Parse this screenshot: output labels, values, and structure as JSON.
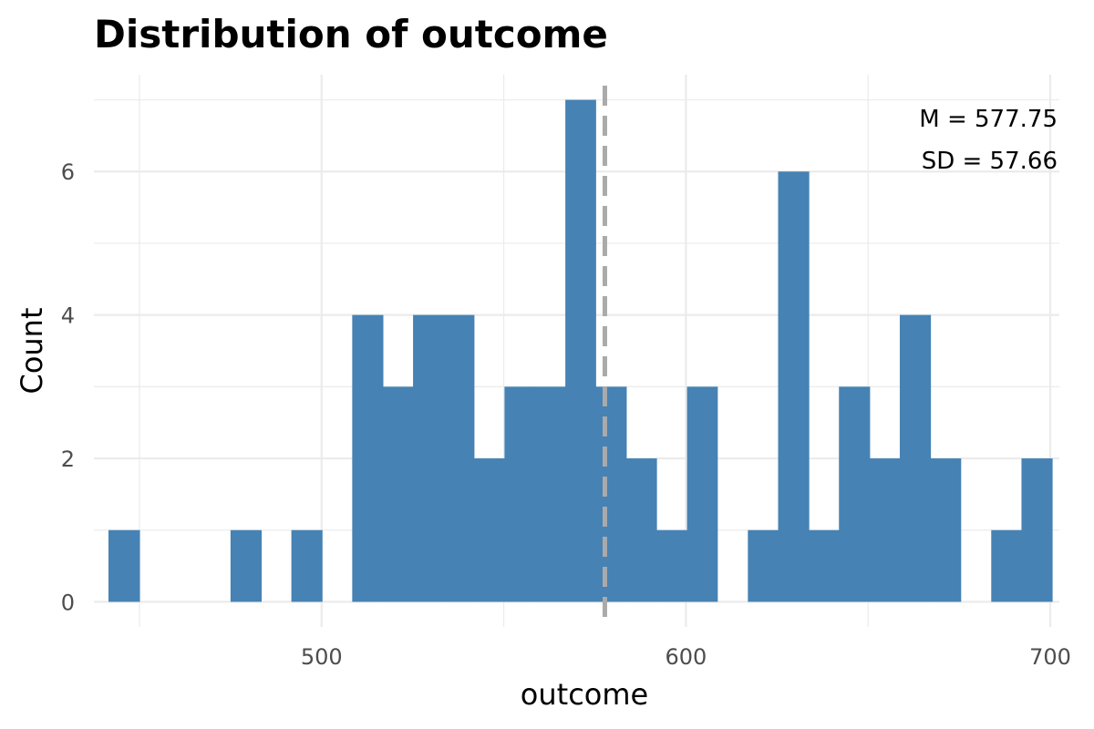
{
  "chart_data": {
    "type": "bar",
    "title": "Distribution of outcome",
    "xlabel": "outcome",
    "ylabel": "Count",
    "xlim": [
      437.5,
      702.5
    ],
    "ylim": [
      -0.35,
      7.35
    ],
    "x_ticks": [
      500,
      600,
      700
    ],
    "x_minor_ticks": [
      450,
      550,
      650
    ],
    "y_ticks": [
      0,
      2,
      4,
      6
    ],
    "y_minor_ticks": [
      1,
      3,
      5,
      7
    ],
    "grid": true,
    "bar_color": "#4682B4",
    "bins": [
      {
        "x0": 441.5,
        "x1": 450.0,
        "count": 1
      },
      {
        "x0": 450.0,
        "x1": 458.3,
        "count": 0
      },
      {
        "x0": 458.3,
        "x1": 466.7,
        "count": 0
      },
      {
        "x0": 466.7,
        "x1": 475.0,
        "count": 0
      },
      {
        "x0": 475.0,
        "x1": 483.4,
        "count": 1
      },
      {
        "x0": 483.4,
        "x1": 491.7,
        "count": 0
      },
      {
        "x0": 491.7,
        "x1": 500.1,
        "count": 1
      },
      {
        "x0": 500.1,
        "x1": 508.4,
        "count": 0
      },
      {
        "x0": 508.4,
        "x1": 516.8,
        "count": 4
      },
      {
        "x0": 516.8,
        "x1": 525.1,
        "count": 3
      },
      {
        "x0": 525.1,
        "x1": 533.5,
        "count": 4
      },
      {
        "x0": 533.5,
        "x1": 541.8,
        "count": 4
      },
      {
        "x0": 541.8,
        "x1": 550.2,
        "count": 2
      },
      {
        "x0": 550.2,
        "x1": 558.5,
        "count": 3
      },
      {
        "x0": 558.5,
        "x1": 566.9,
        "count": 3
      },
      {
        "x0": 566.9,
        "x1": 575.2,
        "count": 7
      },
      {
        "x0": 575.2,
        "x1": 583.6,
        "count": 3
      },
      {
        "x0": 583.6,
        "x1": 591.9,
        "count": 2
      },
      {
        "x0": 591.9,
        "x1": 600.3,
        "count": 1
      },
      {
        "x0": 600.3,
        "x1": 608.6,
        "count": 3
      },
      {
        "x0": 608.6,
        "x1": 617.0,
        "count": 0
      },
      {
        "x0": 617.0,
        "x1": 625.3,
        "count": 1
      },
      {
        "x0": 625.3,
        "x1": 633.7,
        "count": 6
      },
      {
        "x0": 633.7,
        "x1": 642.0,
        "count": 1
      },
      {
        "x0": 642.0,
        "x1": 650.4,
        "count": 3
      },
      {
        "x0": 650.4,
        "x1": 658.7,
        "count": 2
      },
      {
        "x0": 658.7,
        "x1": 667.1,
        "count": 4
      },
      {
        "x0": 667.1,
        "x1": 675.4,
        "count": 2
      },
      {
        "x0": 675.4,
        "x1": 683.8,
        "count": 0
      },
      {
        "x0": 683.8,
        "x1": 692.1,
        "count": 1
      },
      {
        "x0": 692.1,
        "x1": 700.5,
        "count": 2
      }
    ],
    "mean_line": {
      "x": 577.75,
      "color": "#AAAAAA",
      "style": "dashed"
    },
    "annotations": {
      "mean": "M = 577.75",
      "sd": "SD = 57.66"
    }
  }
}
